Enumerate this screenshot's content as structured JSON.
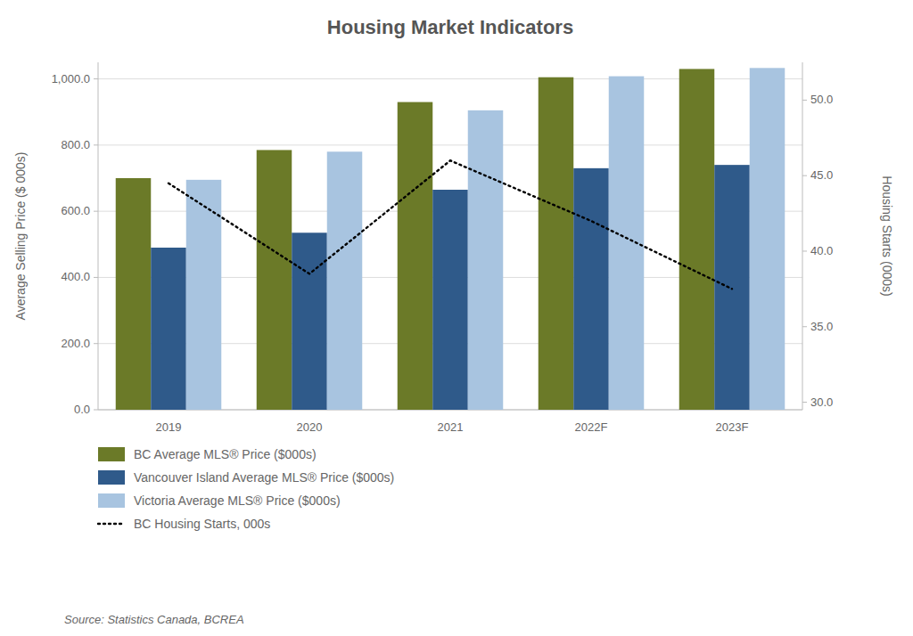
{
  "chart_data": {
    "type": "bar",
    "title": "Housing Market Indicators",
    "categories": [
      "2019",
      "2020",
      "2021",
      "2022F",
      "2023F"
    ],
    "series": [
      {
        "name": "BC Average MLS® Price ($000s)",
        "color": "#6B7A28",
        "values": [
          700,
          785,
          930,
          1005,
          1030
        ]
      },
      {
        "name": "Vancouver Island Average MLS® Price ($000s)",
        "color": "#2F5A8A",
        "values": [
          490,
          535,
          665,
          730,
          740
        ]
      },
      {
        "name": "Victoria Average MLS® Price ($000s)",
        "color": "#A8C4E0",
        "values": [
          695,
          780,
          905,
          1008,
          1033
        ]
      },
      {
        "name": "BC Housing Starts, 000s",
        "type": "line",
        "axis": "y2",
        "color": "black",
        "line_style": "dotted",
        "values": [
          44.5,
          38.5,
          46.0,
          42.0,
          37.5
        ]
      }
    ],
    "ylabel": "Average Selling Price ($ 000s)",
    "y2label": "Housing Starts (000s)",
    "ylim": [
      0,
      1050
    ],
    "yticks": [
      {
        "value": 0,
        "label": "0.0"
      },
      {
        "value": 200,
        "label": "200.0"
      },
      {
        "value": 400,
        "label": "400.0"
      },
      {
        "value": 600,
        "label": "600.0"
      },
      {
        "value": 800,
        "label": "800.0"
      },
      {
        "value": 1000,
        "label": "1,000.0"
      }
    ],
    "y2lim": [
      29.5,
      52.5
    ],
    "y2ticks": [
      {
        "value": 30,
        "label": "30.0"
      },
      {
        "value": 35,
        "label": "35.0"
      },
      {
        "value": 40,
        "label": "40.0"
      },
      {
        "value": 45,
        "label": "45.0"
      },
      {
        "value": 50,
        "label": "50.0"
      }
    ],
    "grid": true,
    "legend": "bottom",
    "annotations": [
      "Source: Statistics Canada, BCREA"
    ]
  }
}
